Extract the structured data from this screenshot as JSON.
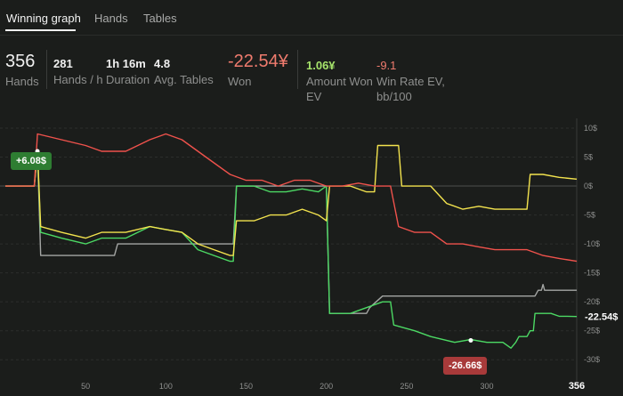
{
  "tabs": [
    {
      "label": "Winning graph",
      "active": true
    },
    {
      "label": "Hands",
      "active": false
    },
    {
      "label": "Tables",
      "active": false
    }
  ],
  "stats": {
    "hands": {
      "value": "356",
      "label": "Hands"
    },
    "hands_per_hour": {
      "value": "281",
      "label": "Hands / h"
    },
    "duration": {
      "value": "1h 16m",
      "label": "Duration"
    },
    "avg_tables": {
      "value": "4.8",
      "label": "Avg. Tables"
    },
    "won": {
      "value": "-22.54¥",
      "label": "Won"
    },
    "amount_won_ev": {
      "value": "1.06¥",
      "label": "Amount Won EV"
    },
    "win_rate_ev": {
      "value": "-9.1",
      "label": "Win Rate EV, bb/100"
    }
  },
  "colors": {
    "won_value": "#ef7b6e",
    "ev_value": "#a6e36b",
    "winrate_value": "#ef7b6e",
    "series_green": "#4cd964",
    "series_red": "#f0524c",
    "series_yellow": "#f3e34e",
    "series_gray": "#a4a6a4"
  },
  "annotations": {
    "max_label": "+6.08$",
    "min_label": "-26.66$",
    "end_label": "-22.54$"
  },
  "chart_data": {
    "type": "line",
    "x_range": [
      0,
      356
    ],
    "y_range": [
      -31.5,
      10
    ],
    "x_ticks": [
      50,
      100,
      150,
      200,
      250,
      300
    ],
    "x_ticks_labels": [
      "50",
      "100",
      "150",
      "200",
      "250",
      "300"
    ],
    "x_end_label": "356",
    "y_ticks": [
      10,
      5,
      0,
      -5,
      -10,
      -15,
      -20,
      -25,
      -30
    ],
    "y_ticks_labels": [
      "10$",
      "5$",
      "0$",
      "-5$",
      "-10$",
      "-15$",
      "-20$",
      "-25$",
      "-30$"
    ],
    "grid": true,
    "series": [
      {
        "color_key": "series_gray",
        "points": [
          [
            0,
            0
          ],
          [
            18,
            0
          ],
          [
            20,
            6
          ],
          [
            22,
            -12
          ],
          [
            68,
            -12
          ],
          [
            70,
            -10
          ],
          [
            142,
            -10
          ],
          [
            144,
            0
          ],
          [
            200,
            0
          ],
          [
            202,
            -22
          ],
          [
            225,
            -22
          ],
          [
            227,
            -21
          ],
          [
            235,
            -19
          ],
          [
            330,
            -19
          ],
          [
            332,
            -18
          ],
          [
            332,
            -18
          ],
          [
            333,
            -18
          ],
          [
            334,
            -18
          ],
          [
            335,
            -17
          ],
          [
            336,
            -18
          ],
          [
            338,
            -18
          ],
          [
            340,
            -18
          ],
          [
            342,
            -18
          ],
          [
            344,
            -18
          ],
          [
            346,
            -18
          ],
          [
            348,
            -18
          ],
          [
            350,
            -18
          ],
          [
            352,
            -18
          ],
          [
            354,
            -18
          ],
          [
            356,
            -18
          ],
          [
            356,
            -18
          ],
          [
            356,
            -18
          ],
          [
            356,
            -18
          ],
          [
            356,
            -18
          ],
          [
            356,
            -18
          ],
          [
            356,
            -18
          ],
          [
            356,
            -18
          ],
          [
            356,
            -18
          ],
          [
            356,
            -18
          ],
          [
            356,
            -18
          ],
          [
            356,
            -18
          ],
          [
            356,
            -18
          ],
          [
            356,
            -18
          ],
          [
            356,
            -18
          ],
          [
            356,
            -18
          ],
          [
            356,
            -18
          ],
          [
            356,
            -18
          ],
          [
            356,
            -18
          ],
          [
            356,
            -18
          ],
          [
            356,
            -18
          ],
          [
            356,
            -18
          ],
          [
            356,
            -18
          ],
          [
            356,
            -18
          ],
          [
            356,
            -18
          ],
          [
            356,
            -18
          ],
          [
            356,
            -18
          ],
          [
            356,
            -18
          ],
          [
            356,
            -18
          ],
          [
            356,
            -18
          ],
          [
            356,
            -18
          ],
          [
            356,
            -18
          ],
          [
            356,
            -18
          ],
          [
            356,
            -18
          ],
          [
            356,
            -18
          ],
          [
            356,
            -18
          ],
          [
            356,
            -18
          ]
        ]
      },
      {
        "color_key": "series_green",
        "points": [
          [
            0,
            0
          ],
          [
            18,
            0
          ],
          [
            20,
            6
          ],
          [
            22,
            -8
          ],
          [
            35,
            -9
          ],
          [
            50,
            -10
          ],
          [
            60,
            -9
          ],
          [
            75,
            -9
          ],
          [
            90,
            -7
          ],
          [
            100,
            -7.5
          ],
          [
            110,
            -8
          ],
          [
            120,
            -11
          ],
          [
            130,
            -12
          ],
          [
            140,
            -13
          ],
          [
            142,
            -13
          ],
          [
            144,
            0
          ],
          [
            155,
            0
          ],
          [
            165,
            -1
          ],
          [
            175,
            -1
          ],
          [
            185,
            -0.5
          ],
          [
            195,
            -1
          ],
          [
            200,
            0
          ],
          [
            202,
            -22
          ],
          [
            215,
            -22
          ],
          [
            225,
            -21
          ],
          [
            235,
            -20
          ],
          [
            240,
            -20
          ],
          [
            242,
            -24
          ],
          [
            255,
            -25
          ],
          [
            265,
            -26
          ],
          [
            280,
            -27
          ],
          [
            290,
            -26.5
          ],
          [
            300,
            -27
          ],
          [
            310,
            -27
          ],
          [
            315,
            -28
          ],
          [
            318,
            -27
          ],
          [
            320,
            -26
          ],
          [
            322,
            -26
          ],
          [
            325,
            -26
          ],
          [
            327,
            -25
          ],
          [
            329,
            -25
          ],
          [
            330,
            -22
          ],
          [
            335,
            -22
          ],
          [
            340,
            -22
          ],
          [
            345,
            -22.5
          ],
          [
            350,
            -22.5
          ],
          [
            356,
            -22.54
          ]
        ]
      },
      {
        "color_key": "series_yellow",
        "points": [
          [
            0,
            0
          ],
          [
            18,
            0
          ],
          [
            20,
            6
          ],
          [
            22,
            -7
          ],
          [
            35,
            -8
          ],
          [
            50,
            -9
          ],
          [
            60,
            -8
          ],
          [
            75,
            -8
          ],
          [
            90,
            -7
          ],
          [
            100,
            -7.5
          ],
          [
            110,
            -8
          ],
          [
            120,
            -10
          ],
          [
            130,
            -11
          ],
          [
            140,
            -12
          ],
          [
            142,
            -12
          ],
          [
            144,
            -6
          ],
          [
            155,
            -6
          ],
          [
            165,
            -5
          ],
          [
            175,
            -5
          ],
          [
            185,
            -4
          ],
          [
            195,
            -5
          ],
          [
            200,
            -6
          ],
          [
            202,
            0
          ],
          [
            215,
            0
          ],
          [
            225,
            -1
          ],
          [
            230,
            -1
          ],
          [
            232,
            7
          ],
          [
            245,
            7
          ],
          [
            247,
            0
          ],
          [
            255,
            0
          ],
          [
            265,
            0
          ],
          [
            275,
            -3
          ],
          [
            285,
            -4
          ],
          [
            295,
            -3.5
          ],
          [
            305,
            -4
          ],
          [
            315,
            -4
          ],
          [
            325,
            -4
          ],
          [
            327,
            2
          ],
          [
            335,
            2
          ],
          [
            345,
            1.5
          ],
          [
            356,
            1.2
          ]
        ]
      },
      {
        "color_key": "series_red",
        "points": [
          [
            0,
            0
          ],
          [
            18,
            0
          ],
          [
            20,
            9
          ],
          [
            35,
            8
          ],
          [
            50,
            7
          ],
          [
            60,
            6
          ],
          [
            75,
            6
          ],
          [
            90,
            8
          ],
          [
            100,
            9
          ],
          [
            110,
            8
          ],
          [
            120,
            6
          ],
          [
            130,
            4
          ],
          [
            140,
            2
          ],
          [
            150,
            1
          ],
          [
            160,
            1
          ],
          [
            170,
            0
          ],
          [
            180,
            1
          ],
          [
            190,
            1
          ],
          [
            200,
            0
          ],
          [
            210,
            0
          ],
          [
            220,
            0.5
          ],
          [
            230,
            0
          ],
          [
            240,
            0
          ],
          [
            245,
            -7
          ],
          [
            255,
            -8
          ],
          [
            265,
            -8
          ],
          [
            275,
            -10
          ],
          [
            285,
            -10
          ],
          [
            295,
            -10.5
          ],
          [
            305,
            -11
          ],
          [
            315,
            -11
          ],
          [
            325,
            -11
          ],
          [
            335,
            -12
          ],
          [
            345,
            -12.5
          ],
          [
            356,
            -13
          ]
        ]
      }
    ]
  }
}
